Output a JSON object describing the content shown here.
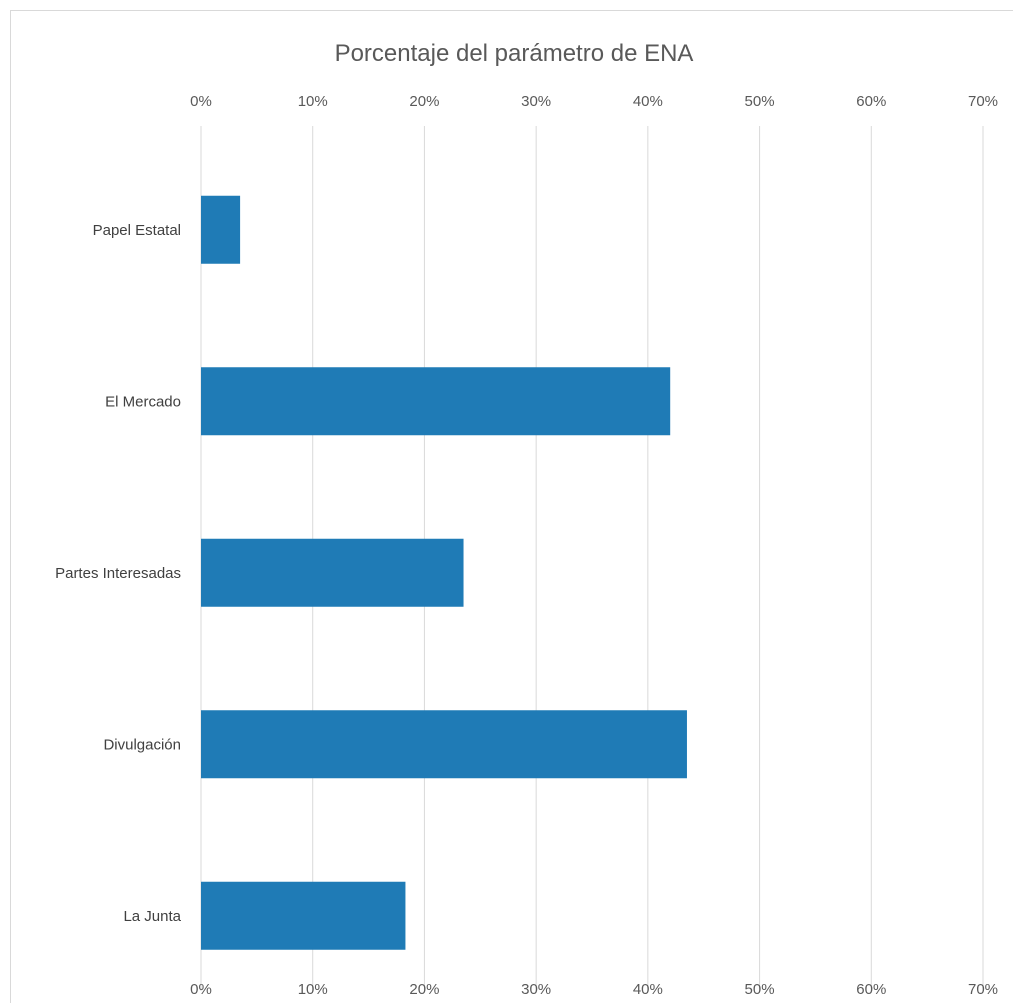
{
  "chart_data": {
    "type": "bar",
    "orientation": "horizontal",
    "title": "Porcentaje del parámetro de ENA",
    "categories": [
      "Papel Estatal",
      "El Mercado",
      "Partes Interesadas",
      "Divulgación",
      "La Junta"
    ],
    "values": [
      0.035,
      0.42,
      0.235,
      0.435,
      0.183
    ],
    "xlim": [
      0,
      0.7
    ],
    "x_ticks": [
      0,
      0.1,
      0.2,
      0.3,
      0.4,
      0.5,
      0.6,
      0.7
    ],
    "x_tick_labels": [
      "0%",
      "10%",
      "20%",
      "30%",
      "40%",
      "50%",
      "60%",
      "70%"
    ],
    "xlabel": "",
    "ylabel": "",
    "x_axis_position": "top and bottom",
    "grid": "vertical",
    "legend": "none",
    "bar_color": "#1f7bb6",
    "grid_color": "#d9d9d9"
  }
}
